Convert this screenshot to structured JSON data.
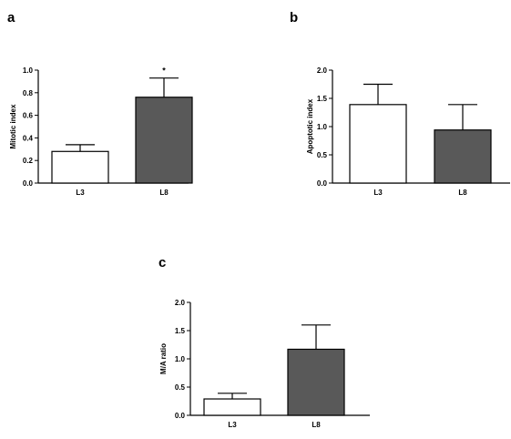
{
  "chart_data": [
    {
      "type": "bar",
      "panel_label": "a",
      "categories": [
        "L3",
        "L8"
      ],
      "values": [
        0.28,
        0.76
      ],
      "errors": [
        0.06,
        0.17
      ],
      "ylabel": "Mitotic index",
      "ylim": [
        0,
        1.0
      ],
      "yticks": [
        "0.0",
        "0.2",
        "0.4",
        "0.6",
        "0.8",
        "1.0"
      ],
      "annotations": [
        {
          "category": "L8",
          "text": "*"
        }
      ],
      "bar_colors": [
        "#ffffff",
        "#595959"
      ],
      "grid": false,
      "legend": "none"
    },
    {
      "type": "bar",
      "panel_label": "b",
      "categories": [
        "L3",
        "L8"
      ],
      "values": [
        1.39,
        0.94
      ],
      "errors": [
        0.36,
        0.45
      ],
      "ylabel": "Apoptotic index",
      "ylim": [
        0,
        2.0
      ],
      "yticks": [
        "0.0",
        "0.5",
        "1.0",
        "1.5",
        "2.0"
      ],
      "annotations": [],
      "bar_colors": [
        "#ffffff",
        "#595959"
      ],
      "grid": false,
      "legend": "none"
    },
    {
      "type": "bar",
      "panel_label": "c",
      "categories": [
        "L3",
        "L8"
      ],
      "values": [
        0.29,
        1.17
      ],
      "errors": [
        0.1,
        0.43
      ],
      "ylabel": "M/A ratio",
      "ylim": [
        0,
        2.0
      ],
      "yticks": [
        "0.0",
        "0.5",
        "1.0",
        "1.5",
        "2.0"
      ],
      "annotations": [],
      "bar_colors": [
        "#ffffff",
        "#595959"
      ],
      "grid": false,
      "legend": "none"
    }
  ]
}
